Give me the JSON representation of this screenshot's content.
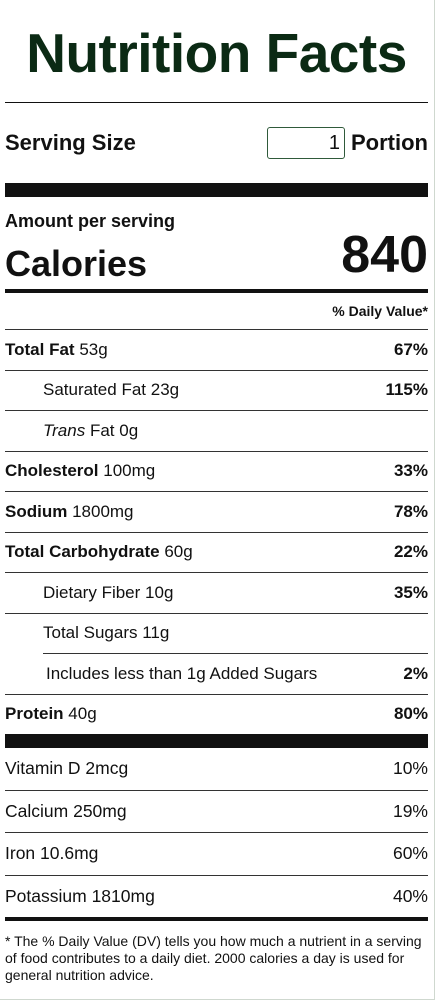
{
  "title": "Nutrition Facts",
  "serving": {
    "label": "Serving Size",
    "value": "1",
    "unit": "Portion"
  },
  "amount_per_serving": "Amount per serving",
  "calories": {
    "label": "Calories",
    "value": "840"
  },
  "daily_value_header": "% Daily Value*",
  "nutrients": [
    {
      "name": "Total Fat",
      "amount": "53g",
      "dv": "67%"
    },
    {
      "name": "Saturated Fat",
      "amount": "23g",
      "dv": "115%"
    },
    {
      "name_prefix": "Trans",
      "name": "Fat",
      "amount": "0g",
      "dv": ""
    },
    {
      "name": "Cholesterol",
      "amount": "100mg",
      "dv": "33%"
    },
    {
      "name": "Sodium",
      "amount": "1800mg",
      "dv": "78%"
    },
    {
      "name": "Total Carbohydrate",
      "amount": "60g",
      "dv": "22%"
    },
    {
      "name": "Dietary Fiber",
      "amount": "10g",
      "dv": "35%"
    },
    {
      "name": "Total Sugars",
      "amount": "11g",
      "dv": ""
    },
    {
      "name": "Includes less than 1g Added Sugars",
      "amount": "",
      "dv": "2%"
    },
    {
      "name": "Protein",
      "amount": "40g",
      "dv": "80%"
    }
  ],
  "vitamins": [
    {
      "name": "Vitamin D",
      "amount": "2mcg",
      "dv": "10%"
    },
    {
      "name": "Calcium",
      "amount": "250mg",
      "dv": "19%"
    },
    {
      "name": "Iron",
      "amount": "10.6mg",
      "dv": "60%"
    },
    {
      "name": "Potassium",
      "amount": "1810mg",
      "dv": "40%"
    }
  ],
  "footnote": "* The % Daily Value (DV) tells you how much a nutrient in a serving of food contributes to a daily diet. 2000 calories a day is used for general nutrition advice.",
  "colors": {
    "title": "#0b2a14",
    "input_border": "#2f5a3a"
  }
}
